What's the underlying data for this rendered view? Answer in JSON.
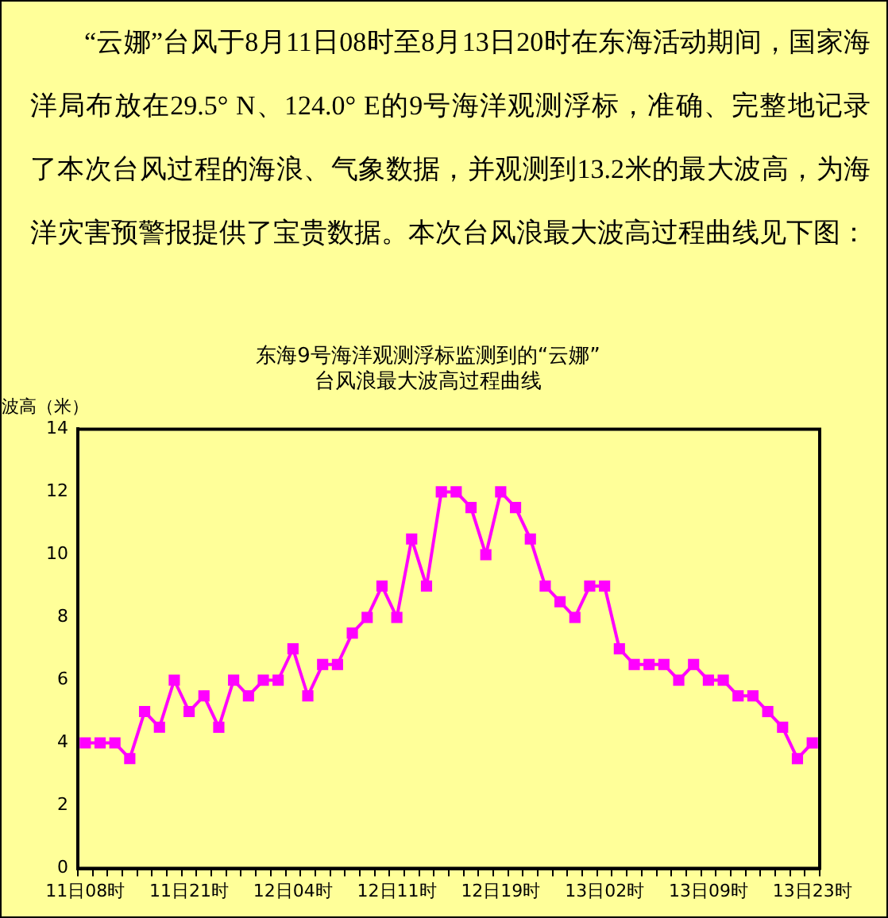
{
  "chart_data": {
    "type": "line",
    "title": "东海9号海洋观测浮标监测到的“云娜”\n台风浪最大波高过程曲线",
    "ylabel": "波高（米）",
    "annotations": [
      "“云娜”台风于8月11日08时至8月13日20时在东海活动期间，国家海洋局布放在29.5° N、124.0° E的9号海洋观测浮标，准确、完整地记录了本次台风过程的海浪、气象数据，并观测到13.2米的最大波高，为海洋灾害预警报提供了宝贵数据。本次台风浪最大波高过程曲线见下图："
    ],
    "categories": [
      "11日08时",
      null,
      null,
      null,
      null,
      null,
      null,
      "11日21时",
      null,
      null,
      null,
      null,
      null,
      null,
      "12日04时",
      null,
      null,
      null,
      null,
      null,
      null,
      "12日11时",
      null,
      null,
      null,
      null,
      null,
      null,
      "12日19时",
      null,
      null,
      null,
      null,
      null,
      null,
      "13日02时",
      null,
      null,
      null,
      null,
      null,
      null,
      "13日09时",
      null,
      null,
      null,
      null,
      null,
      null,
      "13日23时"
    ],
    "series": [
      {
        "color": "#ff00ff",
        "values": [
          4,
          4,
          4,
          3.5,
          5,
          4.5,
          6,
          5,
          5.5,
          4.5,
          6,
          5.5,
          6,
          6,
          7,
          5.5,
          6.5,
          6.5,
          7.5,
          8,
          9,
          8,
          10.5,
          9,
          12,
          12,
          11.5,
          10,
          12,
          11.5,
          10.5,
          9,
          8.5,
          8,
          9,
          9,
          7,
          6.5,
          6.5,
          6.5,
          6,
          6.5,
          6,
          6,
          5.5,
          5.5,
          5,
          4.5,
          3.5,
          4
        ]
      }
    ],
    "ylim": [
      0,
      14
    ],
    "yticks": [
      0,
      2,
      4,
      6,
      8,
      10,
      12,
      14
    ],
    "grid": false,
    "legend": false,
    "marker": "square",
    "line_style": "solid"
  }
}
